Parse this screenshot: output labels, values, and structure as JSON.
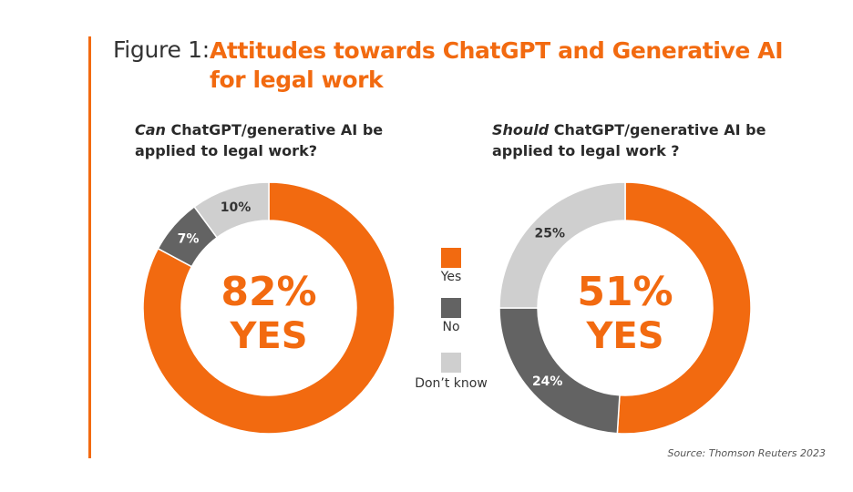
{
  "figure": {
    "prefix": "Figure 1:",
    "title": "Attitudes towards ChatGPT and Generative AI for legal work"
  },
  "colors": {
    "yes": "#f26a10",
    "no": "#636363",
    "dont_know": "#cfcfcf"
  },
  "legend": [
    {
      "label": "Yes",
      "color": "#f26a10"
    },
    {
      "label": "No",
      "color": "#636363"
    },
    {
      "label": "Don’t know",
      "color": "#cfcfcf"
    }
  ],
  "chart_data": [
    {
      "type": "pie",
      "question_em": "Can",
      "question_rest": " ChatGPT/generative AI be applied to legal work?",
      "center_value": "82%",
      "center_label": "YES",
      "slices": [
        {
          "label": "Yes",
          "value": 82,
          "display": ""
        },
        {
          "label": "No",
          "value": 7,
          "display": "7%"
        },
        {
          "label": "Don’t know",
          "value": 10,
          "display": "10%"
        }
      ]
    },
    {
      "type": "pie",
      "question_em": "Should",
      "question_rest": " ChatGPT/generative AI be applied to legal work ?",
      "center_value": "51%",
      "center_label": "YES",
      "slices": [
        {
          "label": "Yes",
          "value": 51,
          "display": ""
        },
        {
          "label": "No",
          "value": 24,
          "display": "24%"
        },
        {
          "label": "Don’t know",
          "value": 25,
          "display": "25%"
        }
      ]
    }
  ],
  "source": "Source: Thomson Reuters 2023"
}
